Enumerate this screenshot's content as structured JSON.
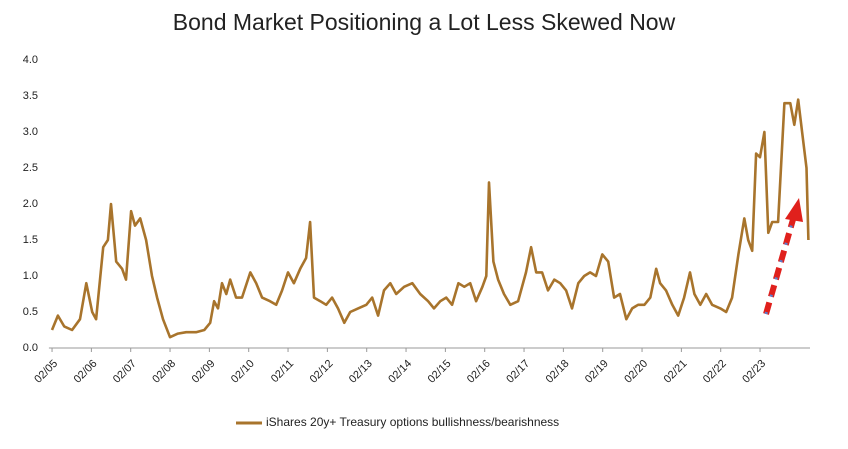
{
  "chart_data": {
    "type": "line",
    "title": "Bond Market Positioning a Lot Less Skewed Now",
    "series": [
      {
        "name": "iShares 20y+ Treasury options bullishness/bearishness",
        "color": "#a8742c",
        "x": [
          2005.08,
          2005.23,
          2005.39,
          2005.59,
          2005.79,
          2005.95,
          2006.1,
          2006.2,
          2006.38,
          2006.5,
          2006.58,
          2006.71,
          2006.86,
          2006.96,
          2007.09,
          2007.19,
          2007.32,
          2007.47,
          2007.62,
          2007.75,
          2007.9,
          2008.08,
          2008.28,
          2008.49,
          2008.74,
          2008.95,
          2009.1,
          2009.2,
          2009.3,
          2009.4,
          2009.51,
          2009.61,
          2009.76,
          2009.91,
          2010.12,
          2010.27,
          2010.42,
          2010.62,
          2010.78,
          2010.93,
          2011.08,
          2011.23,
          2011.39,
          2011.54,
          2011.64,
          2011.74,
          2011.9,
          2012.05,
          2012.2,
          2012.35,
          2012.51,
          2012.66,
          2012.86,
          2013.07,
          2013.22,
          2013.37,
          2013.52,
          2013.68,
          2013.83,
          2014.03,
          2014.24,
          2014.44,
          2014.64,
          2014.79,
          2014.95,
          2015.1,
          2015.25,
          2015.41,
          2015.56,
          2015.71,
          2015.86,
          2016.02,
          2016.12,
          2016.19,
          2016.3,
          2016.42,
          2016.57,
          2016.73,
          2016.93,
          2017.13,
          2017.26,
          2017.39,
          2017.54,
          2017.69,
          2017.85,
          2018.0,
          2018.15,
          2018.3,
          2018.46,
          2018.61,
          2018.76,
          2018.91,
          2019.07,
          2019.22,
          2019.37,
          2019.52,
          2019.68,
          2019.83,
          2019.98,
          2020.14,
          2020.29,
          2020.44,
          2020.54,
          2020.69,
          2020.85,
          2021.0,
          2021.15,
          2021.3,
          2021.41,
          2021.56,
          2021.71,
          2021.86,
          2022.07,
          2022.22,
          2022.37,
          2022.53,
          2022.68,
          2022.78,
          2022.88,
          2022.98,
          2023.08,
          2023.19,
          2023.29,
          2023.39,
          2023.54,
          2023.7,
          2023.85,
          2023.95,
          2024.05,
          2024.15,
          2024.26,
          2024.31
        ],
        "values": [
          0.25,
          0.45,
          0.3,
          0.25,
          0.4,
          0.9,
          0.5,
          0.4,
          1.4,
          1.5,
          2.0,
          1.2,
          1.1,
          0.95,
          1.9,
          1.7,
          1.8,
          1.5,
          1.0,
          0.7,
          0.4,
          0.15,
          0.2,
          0.22,
          0.22,
          0.25,
          0.35,
          0.65,
          0.55,
          0.9,
          0.75,
          0.95,
          0.7,
          0.7,
          1.05,
          0.9,
          0.7,
          0.65,
          0.6,
          0.8,
          1.05,
          0.9,
          1.1,
          1.25,
          1.75,
          0.7,
          0.65,
          0.6,
          0.7,
          0.55,
          0.35,
          0.5,
          0.55,
          0.6,
          0.7,
          0.45,
          0.8,
          0.9,
          0.75,
          0.85,
          0.9,
          0.75,
          0.65,
          0.55,
          0.65,
          0.7,
          0.6,
          0.9,
          0.85,
          0.9,
          0.65,
          0.85,
          1.0,
          2.3,
          1.2,
          0.95,
          0.75,
          0.6,
          0.65,
          1.05,
          1.4,
          1.05,
          1.05,
          0.8,
          0.95,
          0.9,
          0.8,
          0.55,
          0.9,
          1.0,
          1.05,
          1.0,
          1.3,
          1.2,
          0.7,
          0.75,
          0.4,
          0.55,
          0.6,
          0.6,
          0.7,
          1.1,
          0.9,
          0.8,
          0.6,
          0.45,
          0.7,
          1.05,
          0.75,
          0.6,
          0.75,
          0.6,
          0.55,
          0.5,
          0.7,
          1.3,
          1.8,
          1.5,
          1.35,
          2.7,
          2.65,
          3.0,
          1.6,
          1.75,
          1.75,
          3.4,
          3.4,
          3.1,
          3.45,
          3.0,
          2.5,
          1.5
        ]
      }
    ],
    "xlim": [
      2005.0,
      2024.35
    ],
    "xticks": [
      {
        "value": 2005.08,
        "label": "02/05"
      },
      {
        "value": 2006.08,
        "label": "02/06"
      },
      {
        "value": 2007.08,
        "label": "02/07"
      },
      {
        "value": 2008.08,
        "label": "02/08"
      },
      {
        "value": 2009.08,
        "label": "02/09"
      },
      {
        "value": 2010.08,
        "label": "02/10"
      },
      {
        "value": 2011.08,
        "label": "02/11"
      },
      {
        "value": 2012.08,
        "label": "02/12"
      },
      {
        "value": 2013.08,
        "label": "02/13"
      },
      {
        "value": 2014.08,
        "label": "02/14"
      },
      {
        "value": 2015.08,
        "label": "02/15"
      },
      {
        "value": 2016.08,
        "label": "02/16"
      },
      {
        "value": 2017.08,
        "label": "02/17"
      },
      {
        "value": 2018.08,
        "label": "02/18"
      },
      {
        "value": 2019.08,
        "label": "02/19"
      },
      {
        "value": 2020.08,
        "label": "02/20"
      },
      {
        "value": 2021.08,
        "label": "02/21"
      },
      {
        "value": 2022.08,
        "label": "02/22"
      },
      {
        "value": 2023.08,
        "label": "02/23"
      }
    ],
    "ylim": [
      0,
      4
    ],
    "yticks": [
      {
        "value": 0,
        "label": "0.0"
      },
      0.5,
      {
        "value": 1,
        "label": "1.0"
      },
      1.5,
      {
        "value": 2,
        "label": "2.0"
      },
      2.5,
      {
        "value": 3,
        "label": "3.0"
      },
      3.5,
      {
        "value": 4,
        "label": "4.0"
      }
    ],
    "grid": false
  }
}
